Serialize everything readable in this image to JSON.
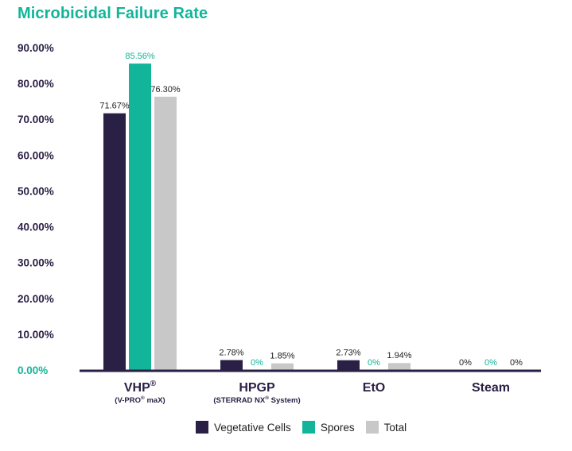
{
  "chart_data": {
    "type": "bar",
    "title": "Microbicidal Failure Rate",
    "categories": [
      {
        "label": "VHP",
        "sup": "®",
        "sub": "(V-PRO",
        "sub_sup": "®",
        "sub_tail": " maX)"
      },
      {
        "label": "HPGP",
        "sup": "",
        "sub": "(STERRAD NX",
        "sub_sup": "®",
        "sub_tail": " System)"
      },
      {
        "label": "EtO",
        "sup": "",
        "sub": "",
        "sub_sup": "",
        "sub_tail": ""
      },
      {
        "label": "Steam",
        "sup": "",
        "sub": "",
        "sub_sup": "",
        "sub_tail": ""
      }
    ],
    "series": [
      {
        "name": "Vegetative Cells",
        "color": "#2a1f44",
        "label_color": "#222222",
        "values": [
          71.67,
          2.78,
          2.73,
          0
        ],
        "labels": [
          "71.67%",
          "2.78%",
          "2.73%",
          "0%"
        ]
      },
      {
        "name": "Spores",
        "color": "#13b59a",
        "label_color": "#13b59a",
        "values": [
          85.56,
          0,
          0,
          0
        ],
        "labels": [
          "85.56%",
          "0%",
          "0%",
          "0%"
        ]
      },
      {
        "name": "Total",
        "color": "#c8c8c8",
        "label_color": "#222222",
        "values": [
          76.3,
          1.85,
          1.94,
          0
        ],
        "labels": [
          "76.30%",
          "1.85%",
          "1.94%",
          "0%"
        ]
      }
    ],
    "yticks": [
      "0.00%",
      "10.00%",
      "20.00%",
      "30.00%",
      "40.00%",
      "50.00%",
      "60.00%",
      "70.00%",
      "80.00%",
      "90.00%"
    ],
    "ylim": [
      0,
      90
    ],
    "grid": false,
    "legend_position": "bottom",
    "axis_color": "#2a1f44",
    "zero_tick_color": "#13b59a"
  }
}
